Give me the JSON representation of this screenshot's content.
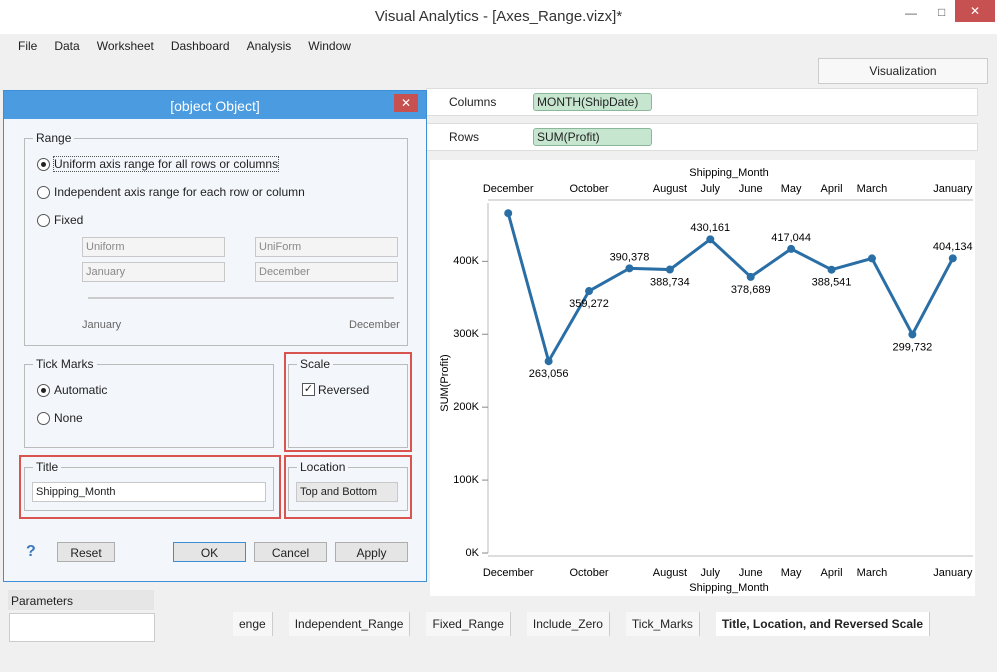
{
  "window": {
    "title": "Visual Analytics - [Axes_Range.vizx]*"
  },
  "menu": [
    "File",
    "Data",
    "Worksheet",
    "Dashboard",
    "Analysis",
    "Window"
  ],
  "visualization_tab": "Visualization",
  "shelves": {
    "columns_label": "Columns",
    "columns_pill": "MONTH(ShipDate)",
    "rows_label": "Rows",
    "rows_pill": "SUM(Profit)"
  },
  "dialog": {
    "title": {
      "label": "Title",
      "value": "Shipping_Month"
    },
    "range": {
      "label": "Range",
      "options": [
        "Uniform axis range for all rows or columns",
        "Independent axis range for each row or column",
        "Fixed"
      ],
      "fixed_start_type": "Uniform",
      "fixed_end_type": "UniForm",
      "fixed_start": "January",
      "fixed_end": "December",
      "slider_min": "January",
      "slider_max": "December"
    },
    "tick_marks": {
      "label": "Tick Marks",
      "options": [
        "Automatic",
        "None"
      ]
    },
    "scale": {
      "label": "Scale",
      "reversed": "Reversed"
    },
    "location": {
      "label": "Location",
      "value": "Top and Bottom"
    },
    "buttons": {
      "help": "?",
      "reset": "Reset",
      "ok": "OK",
      "cancel": "Cancel",
      "apply": "Apply"
    }
  },
  "parameters": "Parameters",
  "sheet_tabs": [
    "enge",
    "Independent_Range",
    "Fixed_Range",
    "Include_Zero",
    "Tick_Marks",
    "Title, Location, and Reversed Scale"
  ],
  "chart_data": {
    "type": "line",
    "x_title": "Shipping_Month",
    "y_title": "SUM(Profit)",
    "categories": [
      "January",
      null,
      "March",
      "April",
      "May",
      "June",
      "July",
      "August",
      null,
      "October",
      null,
      "December"
    ],
    "values": [
      404134,
      299732,
      404000,
      388541,
      417044,
      378689,
      430161,
      388734,
      390378,
      359272,
      263056,
      466000
    ],
    "value_labels": [
      "404,134",
      "299,732",
      null,
      "388,541",
      "417,044",
      "378,689",
      "430,161",
      "388,734",
      "390,378",
      "359,272",
      "263,056",
      null
    ],
    "color": "#2a6ea6",
    "x_reversed": true,
    "ylim": [
      0,
      480000
    ],
    "yticks": [
      {
        "value": 0,
        "label": "0K"
      },
      {
        "value": 100000,
        "label": "100K"
      },
      {
        "value": 200000,
        "label": "200K"
      },
      {
        "value": 300000,
        "label": "300K"
      },
      {
        "value": 400000,
        "label": "400K"
      }
    ]
  }
}
